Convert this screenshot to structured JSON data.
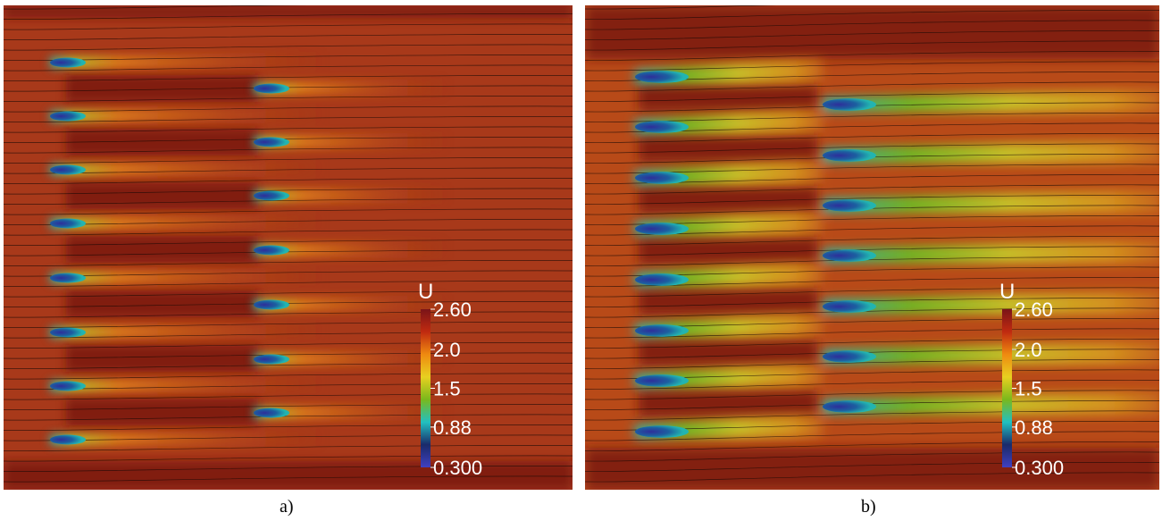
{
  "panels": [
    {
      "id": "a",
      "caption": "a)",
      "colorbar": {
        "variable": "U",
        "ticks": [
          "2.60",
          "2.0",
          "1.5",
          "0.88",
          "0.300"
        ]
      }
    },
    {
      "id": "b",
      "caption": "b)",
      "colorbar": {
        "variable": "U",
        "ticks": [
          "2.60",
          "2.0",
          "1.5",
          "0.88",
          "0.300"
        ]
      }
    }
  ],
  "colors": {
    "background_field": "#a23815",
    "high_velocity": "#7a1412",
    "mid_velocity": "#e0a618",
    "low_velocity": "#22b4b0",
    "min_velocity": "#2e2e9a",
    "streamline": "#1a0a06"
  },
  "colormap_stops": [
    "#7a1418",
    "#c02a10",
    "#ef8a10",
    "#e8d020",
    "#7ab81c",
    "#22c0c0",
    "#1a2a6a",
    "#4040c0"
  ]
}
